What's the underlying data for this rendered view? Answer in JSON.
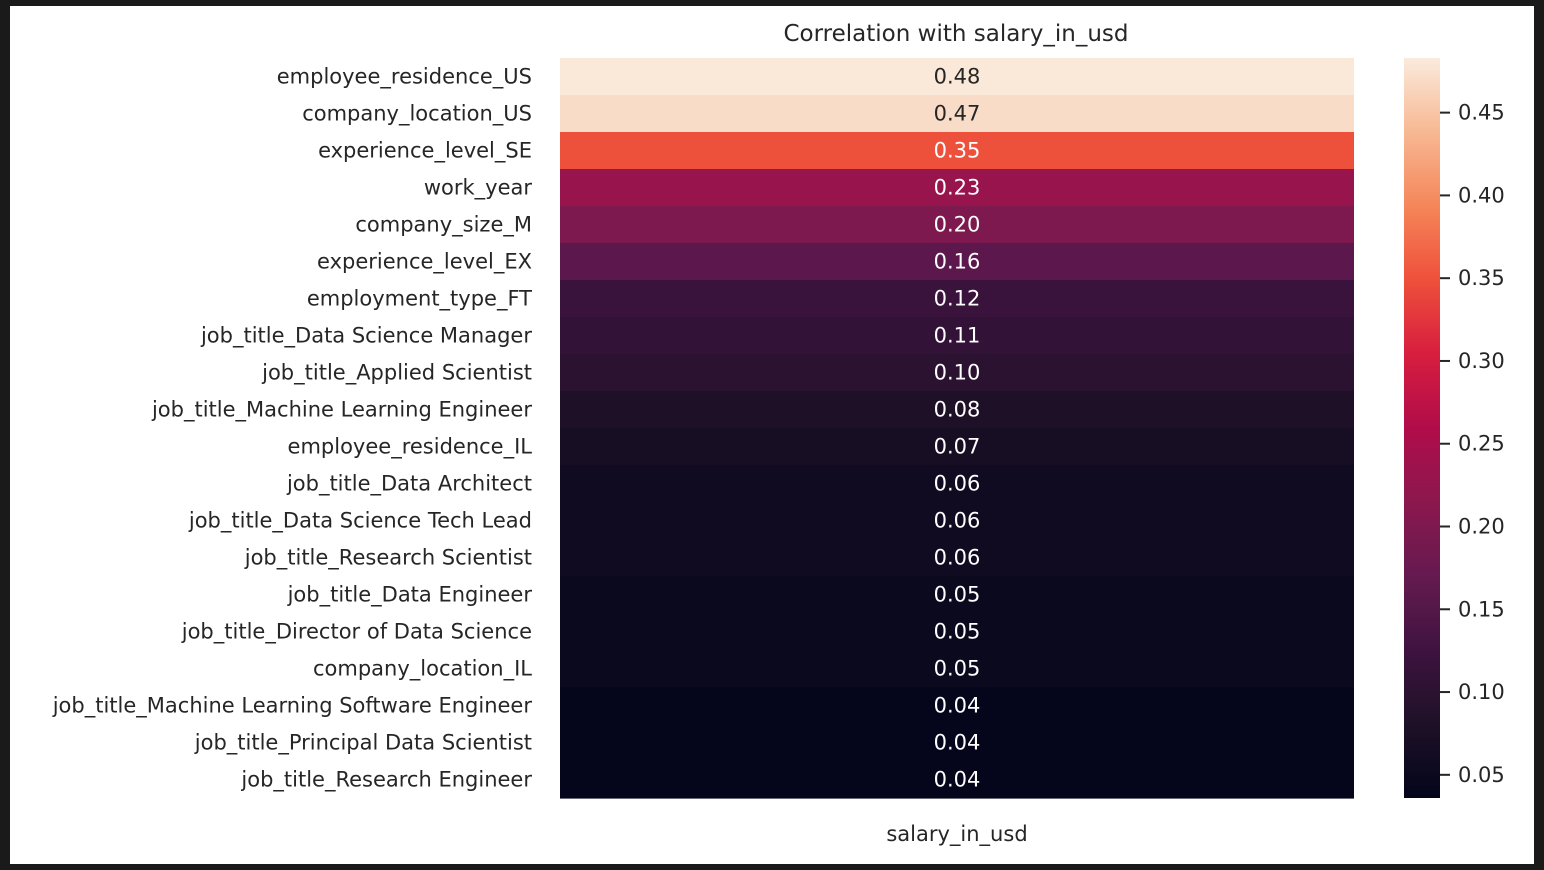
{
  "chart_data": {
    "type": "heatmap",
    "title": "Correlation with salary_in_usd",
    "xlabel": "",
    "ylabel": "",
    "columns": [
      "salary_in_usd"
    ],
    "rows": [
      "employee_residence_US",
      "company_location_US",
      "experience_level_SE",
      "work_year",
      "company_size_M",
      "experience_level_EX",
      "employment_type_FT",
      "job_title_Data Science Manager",
      "job_title_Applied Scientist",
      "job_title_Machine Learning Engineer",
      "employee_residence_IL",
      "job_title_Data Architect",
      "job_title_Data Science Tech Lead",
      "job_title_Research Scientist",
      "job_title_Data Engineer",
      "job_title_Director of Data Science",
      "company_location_IL",
      "job_title_Machine Learning Software Engineer",
      "job_title_Principal Data Scientist",
      "job_title_Research Engineer"
    ],
    "values": [
      0.48,
      0.47,
      0.35,
      0.23,
      0.2,
      0.16,
      0.12,
      0.11,
      0.1,
      0.08,
      0.07,
      0.06,
      0.06,
      0.06,
      0.05,
      0.05,
      0.05,
      0.04,
      0.04,
      0.04
    ],
    "value_labels": [
      "0.48",
      "0.47",
      "0.35",
      "0.23",
      "0.20",
      "0.16",
      "0.12",
      "0.11",
      "0.10",
      "0.08",
      "0.07",
      "0.06",
      "0.06",
      "0.06",
      "0.05",
      "0.05",
      "0.05",
      "0.04",
      "0.04",
      "0.04"
    ],
    "colormap": "rocket",
    "colorbar": {
      "range": [
        0.036,
        0.483
      ],
      "ticks": [
        0.05,
        0.1,
        0.15,
        0.2,
        0.25,
        0.3,
        0.35,
        0.4,
        0.45
      ],
      "tick_labels": [
        "0.05",
        "0.10",
        "0.15",
        "0.20",
        "0.25",
        "0.30",
        "0.35",
        "0.40",
        "0.45"
      ]
    },
    "grid": false
  }
}
